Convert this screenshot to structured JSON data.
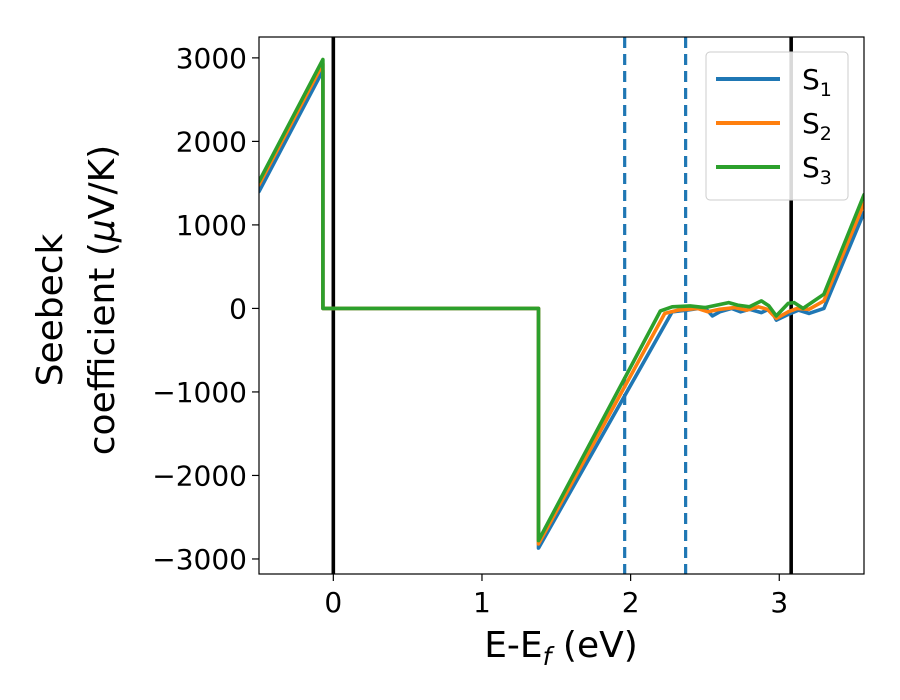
{
  "chart_data": {
    "type": "line",
    "title": "",
    "xlabel": {
      "main": "E-E",
      "sub": "f",
      "rest": " (eV)"
    },
    "ylabel": {
      "line1": "Seebeck",
      "line2": "coefficient  (",
      "mu": "μ",
      "line2_rest": "V/K)"
    },
    "xlim": [
      -0.5,
      3.57
    ],
    "ylim": [
      -3180,
      3250
    ],
    "xticks": [
      0,
      1,
      2,
      3
    ],
    "xtick_labels": [
      "0",
      "1",
      "2",
      "3"
    ],
    "yticks": [
      -3000,
      -2000,
      -1000,
      0,
      1000,
      2000,
      3000
    ],
    "ytick_labels": [
      "−3000",
      "−2000",
      "−1000",
      "0",
      "1000",
      "2000",
      "3000"
    ],
    "grid": false,
    "legend_position": "top-right",
    "vertical_lines": [
      {
        "x": 0.0,
        "style": "solid",
        "color": "#000000"
      },
      {
        "x": 3.08,
        "style": "solid",
        "color": "#000000"
      },
      {
        "x": 1.96,
        "style": "dashed",
        "color": "#1f77b4"
      },
      {
        "x": 2.37,
        "style": "dashed",
        "color": "#1f77b4"
      }
    ],
    "series": [
      {
        "name": "S",
        "sub": "1",
        "color": "#1f77b4",
        "points": [
          [
            -0.5,
            1400
          ],
          [
            -0.07,
            2850
          ],
          [
            -0.07,
            0
          ],
          [
            1.38,
            0
          ],
          [
            1.38,
            -2870
          ],
          [
            2.28,
            -40
          ],
          [
            2.38,
            -20
          ],
          [
            2.5,
            10
          ],
          [
            2.55,
            -90
          ],
          [
            2.6,
            -40
          ],
          [
            2.68,
            0
          ],
          [
            2.74,
            -40
          ],
          [
            2.8,
            -10
          ],
          [
            2.88,
            -50
          ],
          [
            2.94,
            0
          ],
          [
            2.98,
            -140
          ],
          [
            3.05,
            -80
          ],
          [
            3.13,
            -20
          ],
          [
            3.2,
            -60
          ],
          [
            3.3,
            0
          ],
          [
            3.57,
            1150
          ]
        ]
      },
      {
        "name": "S",
        "sub": "2",
        "color": "#ff7f0e",
        "points": [
          [
            -0.5,
            1480
          ],
          [
            -0.07,
            2930
          ],
          [
            -0.07,
            0
          ],
          [
            1.38,
            0
          ],
          [
            1.38,
            -2820
          ],
          [
            2.23,
            -60
          ],
          [
            2.32,
            -20
          ],
          [
            2.45,
            0
          ],
          [
            2.52,
            -40
          ],
          [
            2.6,
            -10
          ],
          [
            2.7,
            10
          ],
          [
            2.78,
            -20
          ],
          [
            2.86,
            20
          ],
          [
            2.92,
            -10
          ],
          [
            2.98,
            -120
          ],
          [
            3.06,
            -40
          ],
          [
            3.12,
            0
          ],
          [
            3.2,
            -10
          ],
          [
            3.3,
            90
          ],
          [
            3.57,
            1260
          ]
        ]
      },
      {
        "name": "S",
        "sub": "3",
        "color": "#2ca02c",
        "points": [
          [
            -0.5,
            1520
          ],
          [
            -0.07,
            2980
          ],
          [
            -0.07,
            0
          ],
          [
            1.38,
            0
          ],
          [
            1.38,
            -2780
          ],
          [
            2.2,
            -30
          ],
          [
            2.28,
            20
          ],
          [
            2.4,
            30
          ],
          [
            2.5,
            10
          ],
          [
            2.58,
            40
          ],
          [
            2.66,
            70
          ],
          [
            2.72,
            40
          ],
          [
            2.8,
            20
          ],
          [
            2.88,
            90
          ],
          [
            2.93,
            30
          ],
          [
            2.98,
            -90
          ],
          [
            3.06,
            60
          ],
          [
            3.1,
            70
          ],
          [
            3.16,
            0
          ],
          [
            3.3,
            170
          ],
          [
            3.57,
            1360
          ]
        ]
      }
    ]
  }
}
